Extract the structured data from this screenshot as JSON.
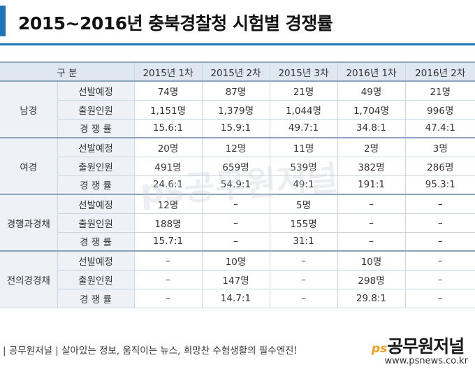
{
  "title": "2015~2016년 충북경찰청 시험별 경쟁률",
  "table": {
    "corner": "구  분",
    "columns": [
      "2015년 1차",
      "2015년 2차",
      "2015년 3차",
      "2016년 1차",
      "2016년 2차"
    ],
    "groups": [
      {
        "name": "남경",
        "rows": [
          {
            "label": "선발예정",
            "values": [
              "74명",
              "87명",
              "21명",
              "49명",
              "21명"
            ]
          },
          {
            "label": "출원인원",
            "values": [
              "1,151명",
              "1,379명",
              "1,044명",
              "1,704명",
              "996명"
            ]
          },
          {
            "label": "경 쟁 률",
            "values": [
              "15.6:1",
              "15.9:1",
              "49.7:1",
              "34.8:1",
              "47.4:1"
            ]
          }
        ]
      },
      {
        "name": "여경",
        "rows": [
          {
            "label": "선발예정",
            "values": [
              "20명",
              "12명",
              "11명",
              "2명",
              "3명"
            ]
          },
          {
            "label": "출원인원",
            "values": [
              "491명",
              "659명",
              "539명",
              "382명",
              "286명"
            ]
          },
          {
            "label": "경 쟁 률",
            "values": [
              "24.6:1",
              "54.9:1",
              "49:1",
              "191:1",
              "95.3:1"
            ]
          }
        ]
      },
      {
        "name": "경행과경채",
        "rows": [
          {
            "label": "선발예정",
            "values": [
              "12명",
              "–",
              "5명",
              "–",
              "–"
            ]
          },
          {
            "label": "출원인원",
            "values": [
              "188명",
              "–",
              "155명",
              "–",
              "–"
            ]
          },
          {
            "label": "경 쟁 률",
            "values": [
              "15.7:1",
              "–",
              "31:1",
              "–",
              "–"
            ]
          }
        ]
      },
      {
        "name": "전의경경채",
        "rows": [
          {
            "label": "선발예정",
            "values": [
              "–",
              "10명",
              "–",
              "10명",
              "–"
            ]
          },
          {
            "label": "출원인원",
            "values": [
              "–",
              "147명",
              "–",
              "298명",
              "–"
            ]
          },
          {
            "label": "경 쟁 률",
            "values": [
              "–",
              "14.7:1",
              "–",
              "29.8:1",
              "–"
            ]
          }
        ]
      }
    ]
  },
  "watermark": "ps공무원저널",
  "footer": {
    "slogan": "| 공무원저널 | 살아있는 정보, 움직이는 뉴스, 희망찬 수험생활의 필수엔진!",
    "logo_ps": "ps",
    "logo_brand": "공무원저널",
    "url": "www.psnews.co.kr"
  },
  "colors": {
    "accent": "#1f73b7",
    "header_bg": "#dfe7f1",
    "label_bg": "#eef2f7"
  }
}
